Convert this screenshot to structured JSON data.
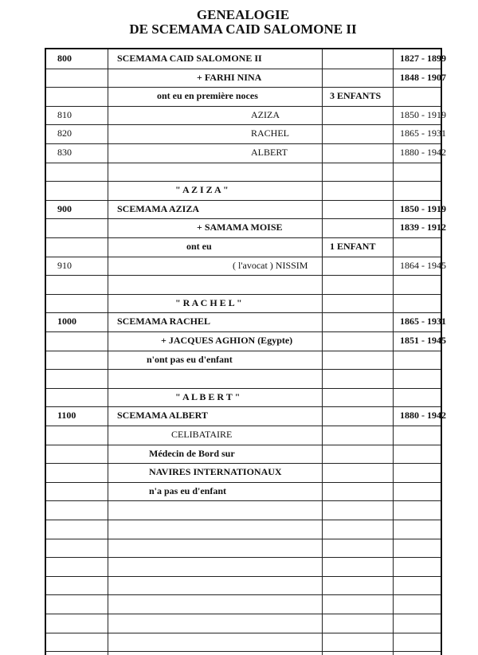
{
  "title": {
    "line1": "GENEALOGIE",
    "line2": "DE SCEMAMA CAID SALOMONE II"
  },
  "rows": [
    {
      "id": "800",
      "text": "SCEMAMA  CAID  SALOMONE II",
      "extra": "",
      "dates": "1827 - 1899",
      "bold": true,
      "x": "left"
    },
    {
      "id": "",
      "text": "+  FARHI  NINA",
      "extra": "",
      "dates": "1848 - 1907",
      "bold": true,
      "x": "mid"
    },
    {
      "id": "",
      "text": "ont eu en première noces",
      "extra": "3 ENFANTS",
      "dates": "",
      "bold": true,
      "x": "mid2"
    },
    {
      "id": "810",
      "text": "AZIZA",
      "extra": "",
      "dates": "1850 - 1919",
      "bold": false,
      "x": "right"
    },
    {
      "id": "820",
      "text": "RACHEL",
      "extra": "",
      "dates": "1865 - 1931",
      "bold": false,
      "x": "right"
    },
    {
      "id": "830",
      "text": "ALBERT",
      "extra": "",
      "dates": "1880 - 1942",
      "bold": false,
      "x": "right"
    },
    {
      "id": "",
      "text": "",
      "extra": "",
      "dates": ""
    },
    {
      "id": "",
      "text": "\" A Z I Z A \"",
      "extra": "",
      "dates": "",
      "bold": true,
      "x": "head"
    },
    {
      "id": "900",
      "text": "SCEMAMA  AZIZA",
      "extra": "",
      "dates": "1850 - 1919",
      "bold": true,
      "x": "left"
    },
    {
      "id": "",
      "text": "+  SAMAMA  MOISE",
      "extra": "",
      "dates": "1839 - 1912",
      "bold": true,
      "x": "mid"
    },
    {
      "id": "",
      "text": "ont eu",
      "extra": "1 ENFANT",
      "dates": "",
      "bold": true,
      "x": "mid3"
    },
    {
      "id": "910",
      "text": "( l'avocat )  NISSIM",
      "extra": "",
      "dates": "1864 - 1945",
      "bold": false,
      "x": "right2"
    },
    {
      "id": "",
      "text": "",
      "extra": "",
      "dates": ""
    },
    {
      "id": "",
      "text": "\" R A C H E L \"",
      "extra": "",
      "dates": "",
      "bold": true,
      "x": "head"
    },
    {
      "id": "1000",
      "text": "SCEMAMA  RACHEL",
      "extra": "",
      "dates": "1865 - 1931",
      "bold": true,
      "x": "left"
    },
    {
      "id": "",
      "text": "+  JACQUES  AGHION (Egypte)",
      "extra": "",
      "dates": "1851 - 1945",
      "bold": true,
      "x": "mid4"
    },
    {
      "id": "",
      "text": "n'ont pas eu d'enfant",
      "extra": "",
      "dates": "",
      "bold": true,
      "x": "sub"
    },
    {
      "id": "",
      "text": "",
      "extra": "",
      "dates": ""
    },
    {
      "id": "",
      "text": "\" A L B E R T \"",
      "extra": "",
      "dates": "",
      "bold": true,
      "x": "head"
    },
    {
      "id": "1100",
      "text": "SCEMAMA  ALBERT",
      "extra": "",
      "dates": "1880 - 1942",
      "bold": true,
      "x": "left"
    },
    {
      "id": "",
      "text": "CELIBATAIRE",
      "extra": "",
      "dates": "",
      "bold": false,
      "x": "head2"
    },
    {
      "id": "",
      "text": "Médecin de Bord sur",
      "extra": "",
      "dates": "",
      "bold": true,
      "x": "sub2"
    },
    {
      "id": "",
      "text": "NAVIRES INTERNATIONAUX",
      "extra": "",
      "dates": "",
      "bold": true,
      "x": "sub2"
    },
    {
      "id": "",
      "text": "n'a pas eu d'enfant",
      "extra": "",
      "dates": "",
      "bold": true,
      "x": "sub2"
    },
    {
      "id": "",
      "text": "",
      "extra": "",
      "dates": ""
    },
    {
      "id": "",
      "text": "",
      "extra": "",
      "dates": ""
    },
    {
      "id": "",
      "text": "",
      "extra": "",
      "dates": ""
    },
    {
      "id": "",
      "text": "",
      "extra": "",
      "dates": ""
    },
    {
      "id": "",
      "text": "",
      "extra": "",
      "dates": ""
    },
    {
      "id": "",
      "text": "",
      "extra": "",
      "dates": ""
    },
    {
      "id": "",
      "text": "",
      "extra": "",
      "dates": ""
    },
    {
      "id": "",
      "text": "",
      "extra": "",
      "dates": ""
    }
  ]
}
